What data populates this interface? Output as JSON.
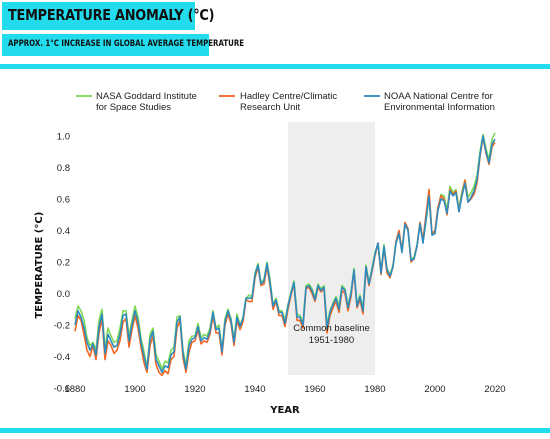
{
  "header": {
    "title": "TEMPERATURE ANOMALY (°C)",
    "subtitle": "APPROX. 1°C INCREASE IN GLOBAL AVERAGE TEMPERATURE"
  },
  "colors": {
    "accent": "#22dcee",
    "nasa": "#7ed957",
    "hadley": "#f26522",
    "noaa": "#2e8bc0",
    "baseline_band": "#eeeeee"
  },
  "chart_data": {
    "type": "line",
    "xlabel": "YEAR",
    "ylabel": "TEMPERATURE (°C)",
    "xlim": [
      1880,
      2020
    ],
    "ylim": [
      -0.65,
      1.05
    ],
    "xticks": [
      "1880",
      "1900",
      "1920",
      "1940",
      "1960",
      "1980",
      "2000",
      "2020"
    ],
    "yticks": [
      "1.0",
      "0.8",
      "0.6",
      "0.4",
      "0.2",
      "0.0",
      "-0.2",
      "-0.4",
      "-0.6"
    ],
    "legend_position": "top",
    "grid": false,
    "annotation": {
      "text_line1": "Common baseline",
      "text_line2": "1951-1980",
      "x_start": 1951,
      "x_end": 1980
    },
    "x_start": 1880,
    "x_step": 1,
    "series": [
      {
        "name": "NASA Goddard Institute for Space Studies",
        "legend_line1": "NASA Goddard Institute",
        "legend_line2": "for Space Studies",
        "color": "#7ed957",
        "values": [
          -0.16,
          -0.08,
          -0.11,
          -0.17,
          -0.28,
          -0.33,
          -0.31,
          -0.36,
          -0.17,
          -0.1,
          -0.35,
          -0.22,
          -0.27,
          -0.31,
          -0.3,
          -0.22,
          -0.11,
          -0.11,
          -0.27,
          -0.17,
          -0.08,
          -0.15,
          -0.28,
          -0.37,
          -0.47,
          -0.26,
          -0.22,
          -0.39,
          -0.43,
          -0.48,
          -0.43,
          -0.44,
          -0.36,
          -0.34,
          -0.15,
          -0.14,
          -0.36,
          -0.46,
          -0.3,
          -0.27,
          -0.27,
          -0.19,
          -0.28,
          -0.26,
          -0.27,
          -0.22,
          -0.11,
          -0.22,
          -0.2,
          -0.36,
          -0.16,
          -0.1,
          -0.16,
          -0.29,
          -0.13,
          -0.2,
          -0.15,
          -0.03,
          -0.01,
          -0.02,
          0.13,
          0.19,
          0.07,
          0.09,
          0.2,
          0.09,
          -0.07,
          -0.03,
          -0.11,
          -0.11,
          -0.17,
          -0.07,
          0.01,
          0.08,
          -0.13,
          -0.14,
          -0.19,
          0.05,
          0.06,
          0.03,
          -0.03,
          0.06,
          0.03,
          0.05,
          -0.2,
          -0.11,
          -0.06,
          -0.02,
          -0.08,
          0.05,
          0.03,
          -0.08,
          0.01,
          0.16,
          -0.07,
          -0.01,
          -0.1,
          0.18,
          0.07,
          0.16,
          0.26,
          0.32,
          0.14,
          0.31,
          0.16,
          0.12,
          0.18,
          0.32,
          0.39,
          0.27,
          0.45,
          0.41,
          0.22,
          0.23,
          0.31,
          0.45,
          0.33,
          0.46,
          0.61,
          0.38,
          0.39,
          0.54,
          0.63,
          0.62,
          0.53,
          0.68,
          0.64,
          0.66,
          0.54,
          0.65,
          0.72,
          0.61,
          0.64,
          0.68,
          0.75,
          0.9,
          1.01,
          0.92,
          0.85,
          0.98,
          1.02
        ]
      },
      {
        "name": "Hadley Centre/Climatic Research Unit",
        "legend_line1": "Hadley Centre/Climatic",
        "legend_line2": "Research Unit",
        "color": "#f26522",
        "values": [
          -0.24,
          -0.14,
          -0.17,
          -0.26,
          -0.36,
          -0.4,
          -0.33,
          -0.42,
          -0.25,
          -0.16,
          -0.42,
          -0.3,
          -0.33,
          -0.38,
          -0.36,
          -0.3,
          -0.18,
          -0.16,
          -0.34,
          -0.23,
          -0.14,
          -0.22,
          -0.34,
          -0.44,
          -0.5,
          -0.33,
          -0.27,
          -0.45,
          -0.5,
          -0.52,
          -0.49,
          -0.51,
          -0.42,
          -0.4,
          -0.22,
          -0.17,
          -0.41,
          -0.5,
          -0.37,
          -0.31,
          -0.3,
          -0.23,
          -0.32,
          -0.3,
          -0.31,
          -0.26,
          -0.14,
          -0.25,
          -0.25,
          -0.39,
          -0.2,
          -0.13,
          -0.19,
          -0.33,
          -0.17,
          -0.23,
          -0.18,
          -0.04,
          -0.05,
          -0.05,
          0.1,
          0.17,
          0.05,
          0.06,
          0.17,
          0.05,
          -0.1,
          -0.05,
          -0.14,
          -0.14,
          -0.21,
          -0.1,
          -0.01,
          0.06,
          -0.17,
          -0.17,
          -0.22,
          0.03,
          0.04,
          0.0,
          -0.05,
          0.04,
          0.01,
          0.03,
          -0.25,
          -0.14,
          -0.09,
          -0.05,
          -0.12,
          0.02,
          0.0,
          -0.11,
          -0.02,
          0.14,
          -0.09,
          -0.04,
          -0.13,
          0.16,
          0.05,
          0.14,
          0.24,
          0.32,
          0.12,
          0.29,
          0.13,
          0.1,
          0.17,
          0.33,
          0.4,
          0.27,
          0.45,
          0.41,
          0.2,
          0.22,
          0.3,
          0.45,
          0.34,
          0.5,
          0.66,
          0.38,
          0.4,
          0.55,
          0.62,
          0.6,
          0.5,
          0.66,
          0.63,
          0.65,
          0.52,
          0.63,
          0.72,
          0.58,
          0.6,
          0.63,
          0.7,
          0.87,
          0.99,
          0.89,
          0.82,
          0.93,
          0.96
        ]
      },
      {
        "name": "NOAA National Centre for Environmental Information",
        "legend_line1": "NOAA National Centre for",
        "legend_line2": "Environmental Information",
        "color": "#2e8bc0",
        "values": [
          -0.2,
          -0.11,
          -0.15,
          -0.22,
          -0.31,
          -0.36,
          -0.32,
          -0.39,
          -0.21,
          -0.13,
          -0.38,
          -0.26,
          -0.3,
          -0.34,
          -0.33,
          -0.26,
          -0.14,
          -0.13,
          -0.3,
          -0.2,
          -0.11,
          -0.18,
          -0.31,
          -0.4,
          -0.48,
          -0.29,
          -0.24,
          -0.42,
          -0.46,
          -0.5,
          -0.46,
          -0.47,
          -0.39,
          -0.37,
          -0.18,
          -0.15,
          -0.38,
          -0.48,
          -0.33,
          -0.29,
          -0.28,
          -0.21,
          -0.3,
          -0.28,
          -0.29,
          -0.24,
          -0.12,
          -0.23,
          -0.22,
          -0.37,
          -0.18,
          -0.11,
          -0.17,
          -0.31,
          -0.15,
          -0.21,
          -0.16,
          -0.03,
          -0.03,
          -0.03,
          0.12,
          0.18,
          0.06,
          0.08,
          0.19,
          0.07,
          -0.08,
          -0.04,
          -0.12,
          -0.12,
          -0.19,
          -0.08,
          0.0,
          0.07,
          -0.15,
          -0.15,
          -0.2,
          0.04,
          0.05,
          0.02,
          -0.04,
          0.05,
          0.02,
          0.04,
          -0.22,
          -0.12,
          -0.07,
          -0.03,
          -0.1,
          0.04,
          0.02,
          -0.09,
          0.0,
          0.15,
          -0.08,
          -0.02,
          -0.11,
          0.17,
          0.06,
          0.15,
          0.25,
          0.32,
          0.13,
          0.3,
          0.15,
          0.11,
          0.17,
          0.32,
          0.38,
          0.26,
          0.44,
          0.4,
          0.21,
          0.22,
          0.3,
          0.44,
          0.32,
          0.47,
          0.62,
          0.37,
          0.38,
          0.53,
          0.6,
          0.59,
          0.51,
          0.65,
          0.62,
          0.64,
          0.52,
          0.62,
          0.7,
          0.58,
          0.61,
          0.65,
          0.72,
          0.88,
          1.0,
          0.9,
          0.83,
          0.95,
          0.98
        ]
      }
    ]
  }
}
